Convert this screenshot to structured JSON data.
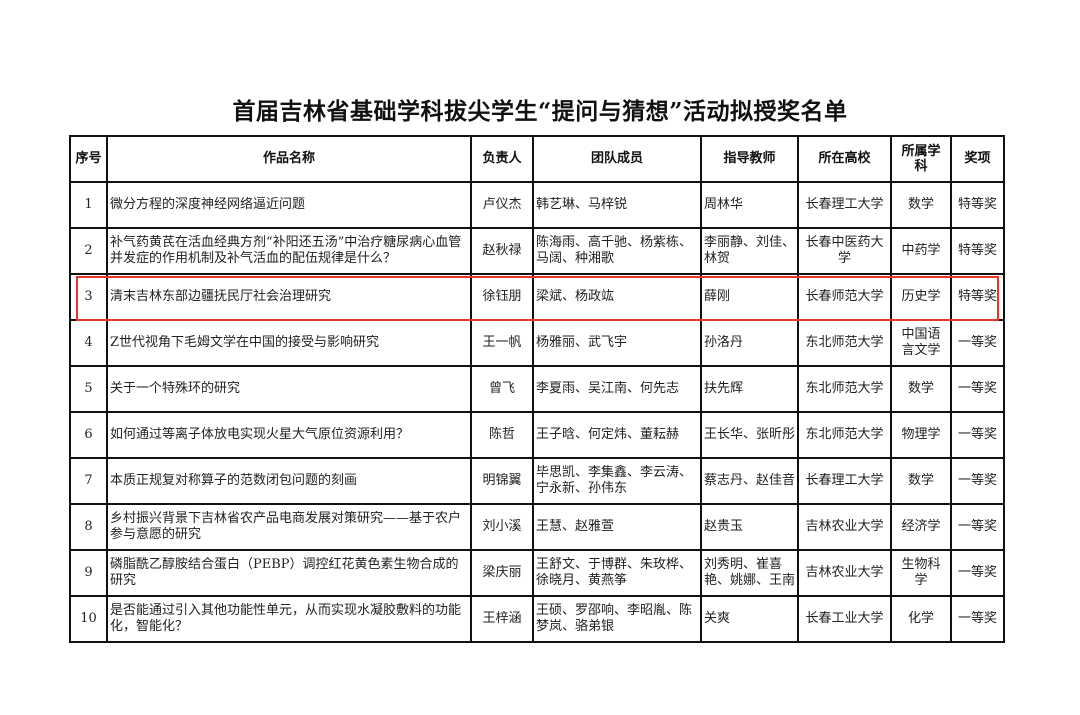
{
  "title": "首届吉林省基础学科拔尖学生“提问与猜想”活动拟授奖名单",
  "highlight_color": "#e8352a",
  "headers": [
    "序号",
    "作品名称",
    "负责人",
    "团队成员",
    "指导教师",
    "所在高校",
    "所属学科",
    "奖项"
  ],
  "rows": [
    {
      "no": "1",
      "work": "微分方程的深度神经网络逼近问题",
      "leader": "卢仪杰",
      "members": "韩艺琳、马梓锐",
      "advisor": "周林华",
      "school": "长春理工大学",
      "subject": "数学",
      "award": "特等奖"
    },
    {
      "no": "2",
      "work": "补气药黄芪在活血经典方剂“补阳还五汤”中治疗糖尿病心血管并发症的作用机制及补气活血的配伍规律是什么？",
      "leader": "赵秋禄",
      "members": "陈海雨、高千驰、杨紫栋、马阔、种湘歌",
      "advisor": "李丽静、刘佳、林贺",
      "school": "长春中医药大学",
      "subject": "中药学",
      "award": "特等奖"
    },
    {
      "no": "3",
      "work": "清末吉林东部边疆抚民厅社会治理研究",
      "leader": "徐钰朋",
      "members": "梁斌、杨政竑",
      "advisor": "薛刚",
      "school": "长春师范大学",
      "subject": "历史学",
      "award": "特等奖"
    },
    {
      "no": "4",
      "work": "Z世代视角下毛姆文学在中国的接受与影响研究",
      "leader": "王一帆",
      "members": "杨雅丽、武飞宇",
      "advisor": "孙洛丹",
      "school": "东北师范大学",
      "subject": "中国语言文学",
      "award": "一等奖"
    },
    {
      "no": "5",
      "work": "关于一个特殊环的研究",
      "leader": "曾飞",
      "members": "李夏雨、吴江南、何先志",
      "advisor": "扶先辉",
      "school": "东北师范大学",
      "subject": "数学",
      "award": "一等奖"
    },
    {
      "no": "6",
      "work": "如何通过等离子体放电实现火星大气原位资源利用？",
      "leader": "陈哲",
      "members": "王子晗、何定炜、董耘赫",
      "advisor": "王长华、张昕彤",
      "school": "东北师范大学",
      "subject": "物理学",
      "award": "一等奖"
    },
    {
      "no": "7",
      "work": "本质正规复对称算子的范数闭包问题的刻画",
      "leader": "明锦翼",
      "members": "毕思凯、李集鑫、李云涛、宁永新、孙伟东",
      "advisor": "蔡志丹、赵佳音",
      "school": "长春理工大学",
      "subject": "数学",
      "award": "一等奖"
    },
    {
      "no": "8",
      "work": "乡村振兴背景下吉林省农产品电商发展对策研究——基于农户参与意愿的研究",
      "leader": "刘小溪",
      "members": "王慧、赵雅萱",
      "advisor": "赵贵玉",
      "school": "吉林农业大学",
      "subject": "经济学",
      "award": "一等奖"
    },
    {
      "no": "9",
      "work": "磷脂酰乙醇胺结合蛋白（PEBP）调控红花黄色素生物合成的研究",
      "leader": "梁庆丽",
      "members": "王舒文、于博群、朱玫桦、徐晓月、黄燕筝",
      "advisor": "刘秀明、崔喜艳、姚娜、王南",
      "school": "吉林农业大学",
      "subject": "生物科学",
      "award": "一等奖"
    },
    {
      "no": "10",
      "work": "是否能通过引入其他功能性单元，从而实现水凝胶敷料的功能化，智能化？",
      "leader": "王梓涵",
      "members": "王硕、罗邵响、李昭胤、陈梦岚、骆弟银",
      "advisor": "关爽",
      "school": "长春工业大学",
      "subject": "化学",
      "award": "一等奖"
    }
  ]
}
